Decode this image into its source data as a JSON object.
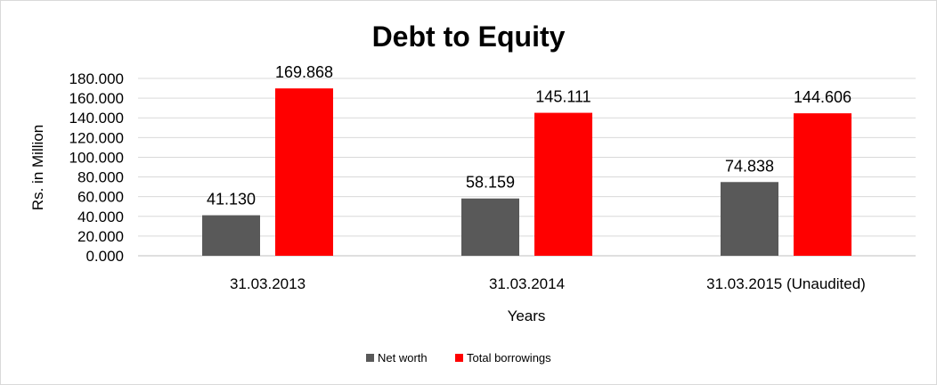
{
  "chart_data": {
    "type": "bar",
    "title": "Debt to Equity",
    "xlabel": "Years",
    "ylabel": "Rs. in Million",
    "categories": [
      "31.03.2013",
      "31.03.2014",
      "31.03.2015 (Unaudited)"
    ],
    "series": [
      {
        "name": "Net worth",
        "values": [
          41.13,
          58.159,
          74.838
        ],
        "labels": [
          "41.130",
          "58.159",
          "74.838"
        ],
        "color": "#595959"
      },
      {
        "name": "Total borrowings",
        "values": [
          169.868,
          145.111,
          144.606
        ],
        "labels": [
          "169.868",
          "145.111",
          "144.606"
        ],
        "color": "#ff0000"
      }
    ],
    "ylim": [
      0,
      180
    ],
    "yticks": [
      "0.000",
      "20.000",
      "40.000",
      "60.000",
      "80.000",
      "100.000",
      "120.000",
      "140.000",
      "160.000",
      "180.000"
    ],
    "grid": true,
    "legend_position": "bottom"
  }
}
